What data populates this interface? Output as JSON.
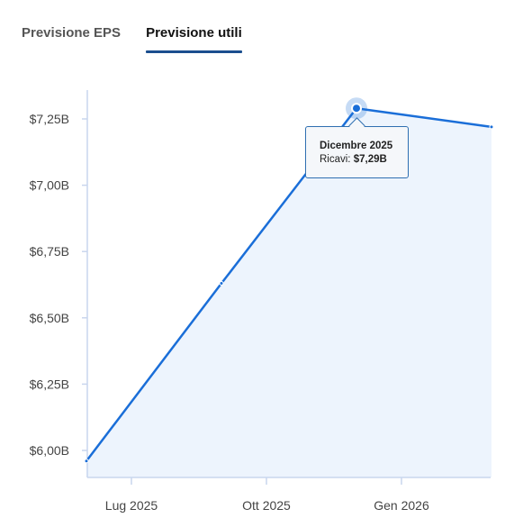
{
  "tabs": [
    {
      "label": "Previsione EPS",
      "active": false
    },
    {
      "label": "Previsione utili",
      "active": true
    }
  ],
  "tooltip": {
    "title": "Dicembre 2025",
    "label": "Ricavi:",
    "value": "$7,29B"
  },
  "colors": {
    "line": "#1a6ed8",
    "area": "#edf4fd",
    "axis": "#c9d6ee",
    "tick_text": "#444444"
  },
  "chart_data": {
    "type": "area",
    "title": "",
    "xlabel": "",
    "ylabel": "",
    "x_ticks": [
      "Lug 2025",
      "Ott 2025",
      "Gen 2026"
    ],
    "y_ticks": [
      "$6,00B",
      "$6,25B",
      "$6,50B",
      "$6,75B",
      "$7,00B",
      "$7,25B"
    ],
    "ylim": [
      5.9,
      7.4
    ],
    "series": [
      {
        "name": "Ricavi",
        "points": [
          {
            "x": "2025-06",
            "y": 5.96
          },
          {
            "x": "2025-09",
            "y": 6.63
          },
          {
            "x": "2025-12",
            "y": 7.29
          },
          {
            "x": "2026-03",
            "y": 7.22
          }
        ]
      }
    ],
    "highlighted_point": {
      "x": "2025-12",
      "y": 7.29
    },
    "grid": false
  }
}
